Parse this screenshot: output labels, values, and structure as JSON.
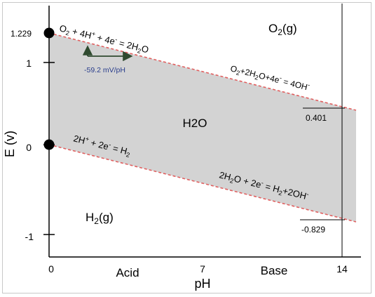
{
  "diagram": {
    "y_axis_label": "E (v)",
    "x_axis_label": "pH",
    "y_ticks": [
      "1.229",
      "1",
      "0",
      "-1"
    ],
    "x_ticks": [
      "0",
      "7",
      "14"
    ],
    "x_region_labels": [
      "Acid",
      "Base"
    ],
    "region_labels": {
      "top": "O2(g)",
      "middle": "H2O",
      "bottom": "H2(g)"
    },
    "upper_line_label_acid": "O2 + 4H+ + 4e- = 2H2O",
    "upper_line_label_base": "O2+2H2O+4e- = 4OH-",
    "lower_line_label_acid": "2H+ + 2e- = H2",
    "lower_line_label_base": "2H2O + 2e- = H2+2OH-",
    "slope_label": "-59.2 mV/pH",
    "upper_value_at_14": "0.401",
    "lower_value_at_14": "-0.829",
    "colors": {
      "band_fill": "#d3d3d3",
      "boundary_line": "#e06060",
      "axis": "#000000",
      "slope_text": "#2a3e8c",
      "arrow": "#2f4a2f"
    }
  },
  "chart_data": {
    "type": "line",
    "title": "",
    "xlabel": "pH",
    "ylabel": "E (v)",
    "xlim": [
      0,
      14
    ],
    "ylim": [
      -1,
      1.229
    ],
    "series": [
      {
        "x": [
          0,
          14
        ],
        "y": [
          1.229,
          0.401
        ]
      },
      {
        "x": [
          0,
          14
        ],
        "y": [
          0,
          -0.829
        ]
      }
    ]
  }
}
